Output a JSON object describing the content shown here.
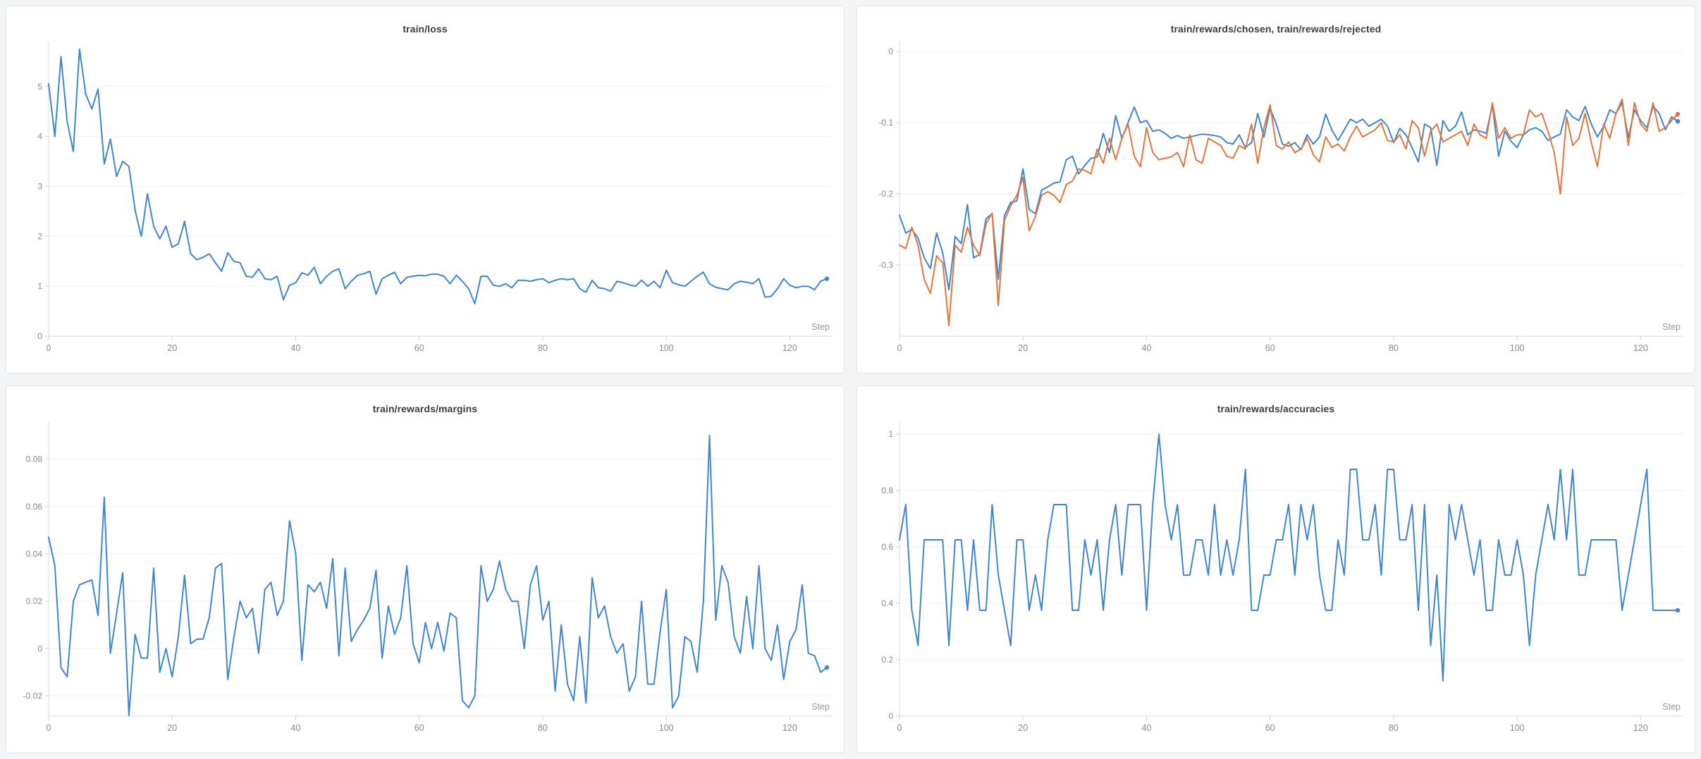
{
  "page": {
    "background_color": "#f4f5f6",
    "card_background": "#ffffff",
    "card_border_color": "#e3e4e6",
    "grid_color": "#f0f1f3",
    "axis_color": "#d9dbde",
    "tick_mark_color": "#cfd1d5",
    "title_color": "#3b3e44",
    "tick_label_color": "#878a8f",
    "series_blue": "#3e86d1",
    "series_orange": "#e5743a"
  },
  "chart_data": [
    {
      "type": "line",
      "title": "train/loss",
      "xlabel": "Step",
      "x_range": [
        0,
        126
      ],
      "x_ticks": [
        0,
        20,
        40,
        60,
        80,
        100,
        120
      ],
      "ylim": [
        0,
        5.9
      ],
      "y_ticks": [
        {
          "value": 0,
          "label": "0"
        },
        {
          "value": 1,
          "label": "1"
        },
        {
          "value": 2,
          "label": "2"
        },
        {
          "value": 3,
          "label": "3"
        },
        {
          "value": 4,
          "label": "4"
        },
        {
          "value": 5,
          "label": "5"
        }
      ],
      "series": [
        {
          "name": "train/loss",
          "color": "#3e86d1",
          "end_dot": true,
          "values": [
            5.05,
            4.0,
            5.6,
            4.3,
            3.7,
            5.75,
            4.85,
            4.55,
            4.95,
            3.45,
            3.95,
            3.2,
            3.5,
            3.4,
            2.52,
            2.0,
            2.85,
            2.2,
            1.95,
            2.2,
            1.78,
            1.85,
            2.3,
            1.65,
            1.53,
            1.58,
            1.65,
            1.47,
            1.3,
            1.67,
            1.5,
            1.47,
            1.2,
            1.18,
            1.35,
            1.15,
            1.13,
            1.2,
            0.73,
            1.02,
            1.07,
            1.27,
            1.22,
            1.38,
            1.05,
            1.2,
            1.3,
            1.35,
            0.95,
            1.1,
            1.22,
            1.25,
            1.3,
            0.84,
            1.15,
            1.22,
            1.28,
            1.05,
            1.18,
            1.2,
            1.22,
            1.21,
            1.24,
            1.24,
            1.2,
            1.05,
            1.22,
            1.1,
            0.95,
            0.65,
            1.2,
            1.2,
            1.02,
            1.0,
            1.05,
            0.97,
            1.12,
            1.12,
            1.1,
            1.13,
            1.15,
            1.07,
            1.12,
            1.15,
            1.13,
            1.15,
            0.95,
            0.88,
            1.12,
            0.97,
            0.95,
            0.9,
            1.1,
            1.07,
            1.03,
            1.0,
            1.12,
            1.0,
            1.1,
            0.97,
            1.32,
            1.07,
            1.03,
            1.0,
            1.1,
            1.2,
            1.28,
            1.05,
            0.98,
            0.95,
            0.93,
            1.05,
            1.1,
            1.08,
            1.05,
            1.15,
            0.78,
            0.8,
            0.95,
            1.15,
            1.02,
            0.97,
            1.0,
            1.0,
            0.93,
            1.1,
            1.15
          ]
        }
      ]
    },
    {
      "type": "line",
      "title": "train/rewards/chosen, train/rewards/rejected",
      "xlabel": "Step",
      "x_range": [
        0,
        126
      ],
      "x_ticks": [
        0,
        20,
        40,
        60,
        80,
        100,
        120
      ],
      "ylim": [
        -0.4,
        0.014
      ],
      "y_ticks": [
        {
          "value": 0,
          "label": "0"
        },
        {
          "value": -0.1,
          "label": "-0.1"
        },
        {
          "value": -0.2,
          "label": "-0.2"
        },
        {
          "value": -0.3,
          "label": "-0.3"
        }
      ],
      "series": [
        {
          "name": "train/rewards/chosen",
          "color": "#3e86d1",
          "end_dot": true,
          "values": [
            -0.23,
            -0.255,
            -0.25,
            -0.262,
            -0.29,
            -0.305,
            -0.255,
            -0.283,
            -0.335,
            -0.26,
            -0.27,
            -0.215,
            -0.29,
            -0.285,
            -0.235,
            -0.228,
            -0.32,
            -0.23,
            -0.212,
            -0.21,
            -0.165,
            -0.222,
            -0.228,
            -0.195,
            -0.19,
            -0.185,
            -0.183,
            -0.152,
            -0.147,
            -0.172,
            -0.16,
            -0.15,
            -0.148,
            -0.115,
            -0.142,
            -0.09,
            -0.122,
            -0.1,
            -0.078,
            -0.1,
            -0.097,
            -0.112,
            -0.11,
            -0.115,
            -0.122,
            -0.118,
            -0.122,
            -0.12,
            -0.118,
            -0.116,
            -0.117,
            -0.118,
            -0.12,
            -0.128,
            -0.13,
            -0.117,
            -0.135,
            -0.128,
            -0.087,
            -0.12,
            -0.08,
            -0.102,
            -0.13,
            -0.133,
            -0.128,
            -0.138,
            -0.117,
            -0.13,
            -0.12,
            -0.088,
            -0.11,
            -0.125,
            -0.11,
            -0.095,
            -0.1,
            -0.095,
            -0.105,
            -0.1,
            -0.095,
            -0.105,
            -0.128,
            -0.108,
            -0.117,
            -0.135,
            -0.155,
            -0.102,
            -0.107,
            -0.16,
            -0.097,
            -0.112,
            -0.105,
            -0.085,
            -0.117,
            -0.11,
            -0.112,
            -0.115,
            -0.075,
            -0.147,
            -0.112,
            -0.126,
            -0.135,
            -0.117,
            -0.11,
            -0.107,
            -0.112,
            -0.125,
            -0.12,
            -0.116,
            -0.082,
            -0.092,
            -0.097,
            -0.077,
            -0.102,
            -0.12,
            -0.105,
            -0.082,
            -0.087,
            -0.072,
            -0.121,
            -0.082,
            -0.097,
            -0.107,
            -0.077,
            -0.087,
            -0.11,
            -0.092,
            -0.098
          ]
        },
        {
          "name": "train/rewards/rejected",
          "color": "#e5743a",
          "end_dot": true,
          "values": [
            -0.272,
            -0.277,
            -0.247,
            -0.272,
            -0.32,
            -0.34,
            -0.287,
            -0.297,
            -0.385,
            -0.272,
            -0.282,
            -0.247,
            -0.272,
            -0.287,
            -0.242,
            -0.227,
            -0.357,
            -0.237,
            -0.217,
            -0.202,
            -0.177,
            -0.252,
            -0.232,
            -0.202,
            -0.197,
            -0.202,
            -0.212,
            -0.187,
            -0.182,
            -0.165,
            -0.167,
            -0.172,
            -0.137,
            -0.157,
            -0.122,
            -0.152,
            -0.122,
            -0.102,
            -0.147,
            -0.162,
            -0.107,
            -0.142,
            -0.152,
            -0.15,
            -0.148,
            -0.142,
            -0.162,
            -0.117,
            -0.152,
            -0.157,
            -0.122,
            -0.127,
            -0.132,
            -0.147,
            -0.15,
            -0.132,
            -0.137,
            -0.102,
            -0.157,
            -0.107,
            -0.075,
            -0.132,
            -0.137,
            -0.127,
            -0.142,
            -0.137,
            -0.122,
            -0.145,
            -0.155,
            -0.12,
            -0.135,
            -0.13,
            -0.14,
            -0.12,
            -0.105,
            -0.12,
            -0.115,
            -0.11,
            -0.1,
            -0.125,
            -0.127,
            -0.117,
            -0.137,
            -0.097,
            -0.107,
            -0.147,
            -0.112,
            -0.102,
            -0.127,
            -0.122,
            -0.117,
            -0.112,
            -0.132,
            -0.102,
            -0.117,
            -0.122,
            -0.072,
            -0.122,
            -0.107,
            -0.122,
            -0.117,
            -0.117,
            -0.082,
            -0.092,
            -0.087,
            -0.112,
            -0.142,
            -0.2,
            -0.092,
            -0.132,
            -0.122,
            -0.087,
            -0.127,
            -0.162,
            -0.102,
            -0.122,
            -0.087,
            -0.067,
            -0.132,
            -0.072,
            -0.102,
            -0.112,
            -0.072,
            -0.112,
            -0.107,
            -0.097,
            -0.088
          ]
        }
      ]
    },
    {
      "type": "line",
      "title": "train/rewards/margins",
      "xlabel": "Step",
      "x_range": [
        0,
        126
      ],
      "x_ticks": [
        0,
        20,
        40,
        60,
        80,
        100,
        120
      ],
      "ylim": [
        -0.0285,
        0.096
      ],
      "y_ticks": [
        {
          "value": 0.08,
          "label": "0.08"
        },
        {
          "value": 0.06,
          "label": "0.06"
        },
        {
          "value": 0.04,
          "label": "0.04"
        },
        {
          "value": 0.02,
          "label": "0.02"
        },
        {
          "value": 0,
          "label": "0"
        },
        {
          "value": -0.02,
          "label": "-0.02"
        }
      ],
      "series": [
        {
          "name": "train/rewards/margins",
          "color": "#3e86d1",
          "end_dot": true,
          "values": [
            0.047,
            0.035,
            -0.008,
            -0.012,
            0.02,
            0.027,
            0.028,
            0.029,
            0.014,
            0.064,
            -0.002,
            0.015,
            0.032,
            -0.0283,
            0.006,
            -0.004,
            -0.004,
            0.034,
            -0.01,
            0.0,
            -0.012,
            0.005,
            0.031,
            0.002,
            0.004,
            0.004,
            0.013,
            0.034,
            0.036,
            -0.013,
            0.005,
            0.02,
            0.013,
            0.017,
            -0.002,
            0.025,
            0.028,
            0.014,
            0.02,
            0.054,
            0.04,
            -0.005,
            0.027,
            0.024,
            0.028,
            0.017,
            0.038,
            -0.003,
            0.034,
            0.003,
            0.008,
            0.012,
            0.017,
            0.033,
            -0.004,
            0.018,
            0.006,
            0.013,
            0.035,
            0.002,
            -0.006,
            0.011,
            0.0,
            0.011,
            -0.001,
            0.015,
            0.013,
            -0.022,
            -0.025,
            -0.02,
            0.035,
            0.02,
            0.025,
            0.037,
            0.025,
            0.02,
            0.02,
            0.0,
            0.027,
            0.035,
            0.012,
            0.02,
            -0.018,
            0.01,
            -0.015,
            -0.022,
            0.005,
            -0.023,
            0.03,
            0.013,
            0.018,
            0.005,
            -0.002,
            0.002,
            -0.018,
            -0.012,
            0.02,
            -0.015,
            -0.015,
            0.007,
            0.025,
            -0.025,
            -0.02,
            0.005,
            0.003,
            -0.01,
            0.02,
            0.09,
            0.012,
            0.035,
            0.028,
            0.005,
            -0.002,
            0.022,
            0.0,
            0.035,
            0.0,
            -0.005,
            0.01,
            -0.013,
            0.003,
            0.008,
            0.027,
            -0.002,
            -0.003,
            -0.01,
            -0.008
          ]
        }
      ]
    },
    {
      "type": "line",
      "title": "train/rewards/accuracies",
      "xlabel": "Step",
      "x_range": [
        0,
        126
      ],
      "x_ticks": [
        0,
        20,
        40,
        60,
        80,
        100,
        120
      ],
      "ylim": [
        0,
        1.045
      ],
      "y_ticks": [
        {
          "value": 1,
          "label": "1"
        },
        {
          "value": 0.8,
          "label": "0.8"
        },
        {
          "value": 0.6,
          "label": "0.6"
        },
        {
          "value": 0.4,
          "label": "0.4"
        },
        {
          "value": 0.2,
          "label": "0.2"
        },
        {
          "value": 0,
          "label": "0"
        }
      ],
      "series": [
        {
          "name": "train/rewards/accuracies",
          "color": "#3e86d1",
          "end_dot": true,
          "values": [
            0.625,
            0.75,
            0.375,
            0.25,
            0.625,
            0.625,
            0.625,
            0.625,
            0.25,
            0.625,
            0.625,
            0.375,
            0.625,
            0.375,
            0.375,
            0.75,
            0.5,
            0.375,
            0.25,
            0.625,
            0.625,
            0.375,
            0.5,
            0.375,
            0.625,
            0.75,
            0.75,
            0.75,
            0.375,
            0.375,
            0.625,
            0.5,
            0.625,
            0.375,
            0.625,
            0.75,
            0.5,
            0.75,
            0.75,
            0.75,
            0.375,
            0.75,
            1.0,
            0.75,
            0.625,
            0.75,
            0.5,
            0.5,
            0.625,
            0.625,
            0.5,
            0.75,
            0.5,
            0.625,
            0.5,
            0.625,
            0.875,
            0.375,
            0.375,
            0.5,
            0.5,
            0.625,
            0.625,
            0.75,
            0.5,
            0.75,
            0.625,
            0.75,
            0.5,
            0.375,
            0.375,
            0.625,
            0.5,
            0.875,
            0.875,
            0.625,
            0.625,
            0.75,
            0.5,
            0.875,
            0.875,
            0.625,
            0.625,
            0.75,
            0.375,
            0.75,
            0.25,
            0.5,
            0.125,
            0.75,
            0.625,
            0.75,
            0.625,
            0.5,
            0.625,
            0.375,
            0.375,
            0.625,
            0.5,
            0.5,
            0.625,
            0.5,
            0.25,
            0.5,
            0.625,
            0.75,
            0.625,
            0.875,
            0.625,
            0.875,
            0.5,
            0.5,
            0.625,
            0.625,
            0.625,
            0.625,
            0.625,
            0.375,
            0.5,
            0.625,
            0.75,
            0.875,
            0.375,
            0.375,
            0.375,
            0.375,
            0.375
          ]
        }
      ]
    }
  ]
}
